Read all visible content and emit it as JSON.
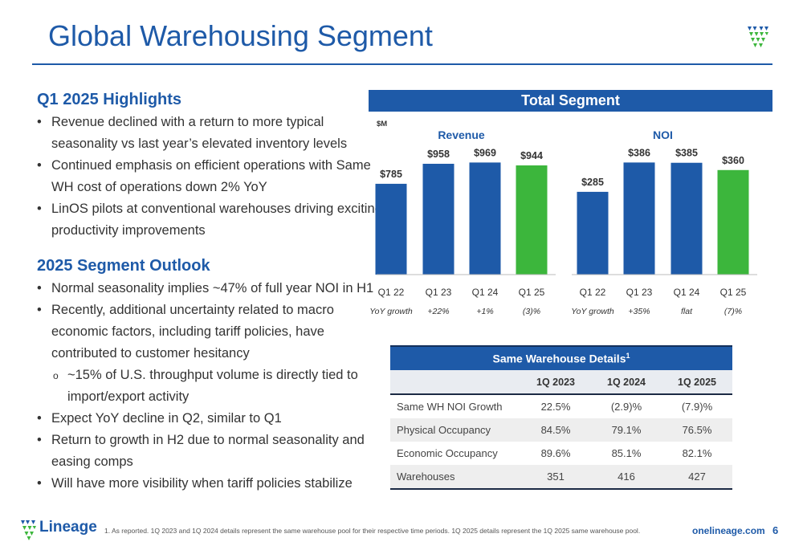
{
  "title": "Global Warehousing Segment",
  "highlights": {
    "heading": "Q1 2025 Highlights",
    "bullets": [
      [
        "Revenue declined with a return to more typical",
        "seasonality vs last year’s elevated inventory levels"
      ],
      [
        "Continued emphasis on efficient operations with Same",
        "WH cost of operations down 2% YoY"
      ],
      [
        "LinOS pilots at conventional warehouses driving exciting",
        "productivity improvements"
      ]
    ]
  },
  "outlook": {
    "heading": "2025 Segment Outlook",
    "bullets": [
      [
        "Normal seasonality implies ~47% of full year NOI in H1"
      ],
      [
        "Recently, additional uncertainty related to macro",
        "economic factors, including tariff policies, have",
        "contributed to customer hesitancy"
      ]
    ],
    "sub_bullet": [
      "~15% of U.S. throughput volume is directly tied to",
      "import/export activity"
    ],
    "bullets_after": [
      [
        "Expect YoY decline in Q2, similar to Q1"
      ],
      [
        "Return to growth in H2 due to normal seasonality and",
        "easing comps"
      ],
      [
        "Will have more visibility when tariff policies stabilize"
      ]
    ],
    "bullet_glyph": "•",
    "sub_glyph": "o"
  },
  "banner": "Total Segment",
  "chart_data": [
    {
      "type": "bar",
      "title": "Revenue",
      "unit_label": "$M",
      "categories": [
        "Q1 22",
        "Q1 23",
        "Q1 24",
        "Q1 25"
      ],
      "values": [
        785,
        958,
        969,
        944
      ],
      "value_labels": [
        "$785",
        "$958",
        "$969",
        "$944"
      ],
      "growth_label": "YoY growth",
      "growth": [
        "+22%",
        "+1%",
        "(3)%"
      ],
      "colors": [
        "#1e5aa8",
        "#1e5aa8",
        "#1e5aa8",
        "#3cb63c"
      ],
      "ylim": [
        0,
        1180
      ]
    },
    {
      "type": "bar",
      "title": "NOI",
      "categories": [
        "Q1 22",
        "Q1 23",
        "Q1 24",
        "Q1 25"
      ],
      "values": [
        285,
        386,
        385,
        360
      ],
      "value_labels": [
        "$285",
        "$386",
        "$385",
        "$360"
      ],
      "growth_label": "YoY growth",
      "growth": [
        "+35%",
        "flat",
        "(7)%"
      ],
      "colors": [
        "#1e5aa8",
        "#1e5aa8",
        "#1e5aa8",
        "#3cb63c"
      ],
      "ylim": [
        0,
        470
      ]
    }
  ],
  "table": {
    "title": "Same Warehouse Details",
    "title_sup": "1",
    "columns": [
      "",
      "1Q 2023",
      "1Q 2024",
      "1Q 2025"
    ],
    "rows": [
      [
        "Same WH NOI Growth",
        "22.5%",
        "(2.9)%",
        "(7.9)%"
      ],
      [
        "Physical Occupancy",
        "84.5%",
        "79.1%",
        "76.5%"
      ],
      [
        "Economic Occupancy",
        "89.6%",
        "85.1%",
        "82.1%"
      ],
      [
        "Warehouses",
        "351",
        "416",
        "427"
      ]
    ]
  },
  "footer": {
    "logo_text": "Lineage",
    "footnote": "1. As reported. 1Q 2023 and 1Q 2024 details represent the same warehouse pool for their respective time periods. 1Q 2025 details represent the 1Q 2025 same warehouse pool.",
    "url": "onelineage.com",
    "page": "6"
  },
  "colors": {
    "brand_blue": "#1e5aa8",
    "brand_green": "#3cb63c",
    "bar_blue": "#1e5aa8"
  }
}
